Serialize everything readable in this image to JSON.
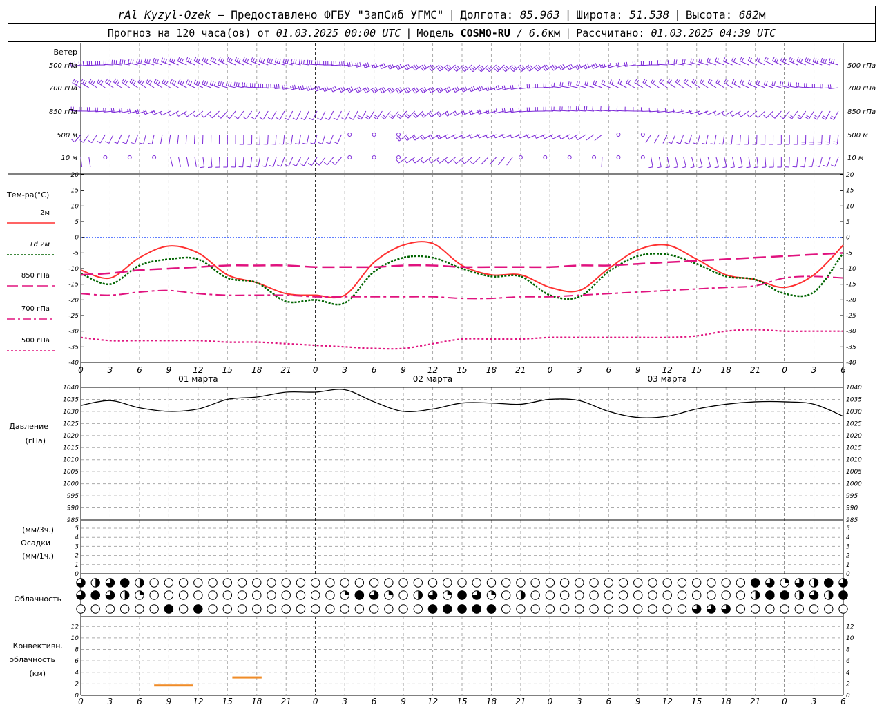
{
  "header": {
    "station": "rAl_Kyzyl-Ozek",
    "provider": "– Предоставлено ФГБУ \"ЗапСиб УГМС\"",
    "lon_label": "Долгота:",
    "lon": "85.963",
    "lat_label": "Широта:",
    "lat": "51.538",
    "alt_label": "Высота:",
    "alt": "682",
    "alt_unit": "м",
    "forecast_label": "Прогноз на 120 часа(ов) от",
    "forecast_start": "01.03.2025 00:00 UTC",
    "model_label": "Модель",
    "model": "COSMO-RU",
    "model_res": "/ 6.6",
    "model_res_unit": "км",
    "calc_label": "Рассчитано:",
    "calc_time": "01.03.2025 04:39 UTC"
  },
  "wind": {
    "title": "Ветер",
    "levels": [
      "500 гПа",
      "700 гПа",
      "850 гПа",
      "500 м",
      "10 м"
    ]
  },
  "temperature": {
    "title": "Тем-ра(°C)",
    "legend": [
      {
        "label": "2м",
        "color": "#ff3030",
        "dash": ""
      },
      {
        "label": "Td 2м",
        "color": "#006400",
        "dash": "3,2"
      },
      {
        "label": "850 гПа",
        "color": "#e0137f",
        "dash": "16,6"
      },
      {
        "label": "700 гПа",
        "color": "#e0137f",
        "dash": "12,4,3,4"
      },
      {
        "label": "500 гПа",
        "color": "#e0137f",
        "dash": "3,3"
      }
    ],
    "yticks": [
      "20",
      "15",
      "10",
      "5",
      "0",
      "-5",
      "-10",
      "-15",
      "-20",
      "-25",
      "-30",
      "-35",
      "-40"
    ]
  },
  "time_axis": {
    "hour_labels": [
      "0",
      "3",
      "6",
      "9",
      "12",
      "15",
      "18",
      "21",
      "0",
      "3",
      "6",
      "9",
      "12",
      "15",
      "18",
      "21",
      "0",
      "3",
      "6",
      "9",
      "12",
      "15",
      "18",
      "21",
      "0",
      "3",
      "6"
    ],
    "day_labels": [
      "01 марта",
      "02 марта",
      "03 марта"
    ]
  },
  "pressure": {
    "title": "Давление",
    "unit": "(гПа)",
    "yticks": [
      "1040",
      "1035",
      "1030",
      "1025",
      "1020",
      "1015",
      "1010",
      "1005",
      "1000",
      "995",
      "990",
      "985"
    ]
  },
  "precip": {
    "unit1": "(мм/3ч.)",
    "title": "Осадки",
    "unit2": "(мм/1ч.)",
    "yticks": [
      "5",
      "4",
      "3",
      "2",
      "1",
      "0"
    ]
  },
  "cloud": {
    "title": "Облачность"
  },
  "convective": {
    "title1": "Конвективн.",
    "title2": "облачность",
    "unit": "(км)",
    "yticks": [
      "12",
      "10",
      "8",
      "6",
      "4",
      "2",
      "0"
    ],
    "color": "#f08c28"
  },
  "chart_data": {
    "type": "line",
    "x_unit": "hours from 01.03.2025 00:00 UTC",
    "x": [
      0,
      3,
      6,
      9,
      12,
      15,
      18,
      21,
      24,
      27,
      30,
      33,
      36,
      39,
      42,
      45,
      48,
      51,
      54,
      57,
      60,
      63,
      66,
      69,
      72,
      75,
      78
    ],
    "series": [
      {
        "name": "2м",
        "panel": "temperature",
        "values": [
          -10.5,
          -13,
          -6.5,
          -2.8,
          -5,
          -12,
          -14.5,
          -18,
          -18.5,
          -18.5,
          -8,
          -2.5,
          -2,
          -9,
          -12,
          -12,
          -16,
          -17,
          -10,
          -4,
          -2.5,
          -7,
          -12,
          -13.5,
          -16,
          -12,
          -2.5
        ]
      },
      {
        "name": "Td 2м",
        "panel": "temperature",
        "values": [
          -11.5,
          -15,
          -9,
          -7,
          -7,
          -13,
          -14.5,
          -20.5,
          -20,
          -21,
          -11,
          -6.5,
          -6.5,
          -10,
          -12.5,
          -12.5,
          -18.5,
          -19,
          -11,
          -6,
          -5.5,
          -8.5,
          -12.5,
          -13.5,
          -18,
          -17.5,
          -5
        ]
      },
      {
        "name": "850 гПа",
        "panel": "temperature",
        "values": [
          -12,
          -11.5,
          -10.5,
          -10,
          -9.5,
          -9,
          -9,
          -9,
          -9.5,
          -9.5,
          -9.5,
          -9,
          -9,
          -9.5,
          -9.5,
          -9.5,
          -9.5,
          -9,
          -9,
          -8.5,
          -8,
          -7.5,
          -7,
          -6.5,
          -6,
          -5.5,
          -5
        ]
      },
      {
        "name": "700 гПа",
        "panel": "temperature",
        "values": [
          -18,
          -18.5,
          -17.5,
          -17,
          -18,
          -18.5,
          -18.5,
          -18.5,
          -19,
          -19,
          -19,
          -19,
          -19,
          -19.5,
          -19.5,
          -19,
          -19,
          -18.5,
          -18,
          -17.5,
          -17,
          -16.5,
          -16,
          -15.5,
          -13,
          -12.5,
          -13
        ]
      },
      {
        "name": "500 гПа",
        "panel": "temperature",
        "values": [
          -32,
          -33,
          -33,
          -33,
          -33,
          -33.5,
          -33.5,
          -34,
          -34.5,
          -35,
          -35.5,
          -35.5,
          -34,
          -32.5,
          -32.5,
          -32.5,
          -32,
          -32,
          -32,
          -32,
          -32,
          -31.5,
          -30,
          -29.5,
          -30,
          -30,
          -30
        ]
      },
      {
        "name": "Давление",
        "panel": "pressure",
        "values": [
          1032.5,
          1034.5,
          1031.5,
          1030,
          1031,
          1035,
          1036,
          1038,
          1038,
          1039,
          1034,
          1030,
          1031,
          1033.5,
          1033.5,
          1033,
          1035,
          1034.5,
          1030,
          1027.5,
          1028,
          1031,
          1033,
          1034,
          1034,
          1033,
          1028
        ]
      }
    ],
    "temp_ylim": [
      -40,
      20
    ],
    "pressure_ylim": [
      985,
      1040
    ],
    "precip_ylim": [
      0,
      5
    ],
    "convective_ylim": [
      0,
      13
    ],
    "convective_cloud": [
      {
        "from_h": 7.5,
        "to_h": 11.5,
        "base_km": 1.7,
        "top_km": 1.9
      },
      {
        "from_h": 15.5,
        "to_h": 18.5,
        "base_km": 3.1,
        "top_km": 3.3
      }
    ],
    "grid": true
  }
}
